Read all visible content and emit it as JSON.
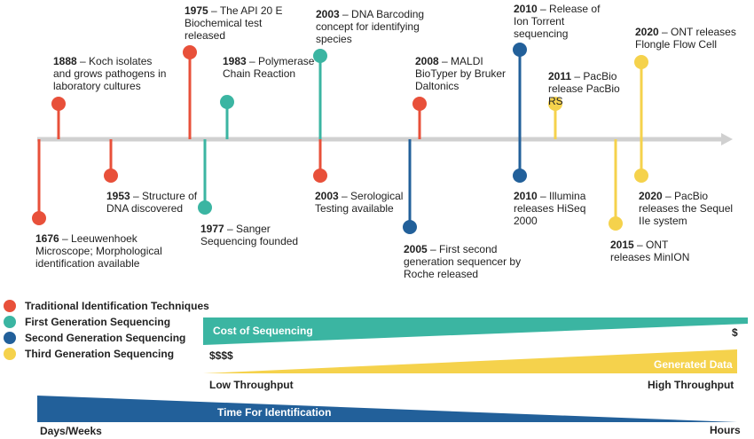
{
  "colors": {
    "traditional": "#e8503a",
    "first_gen": "#3bb5a2",
    "second_gen": "#22609a",
    "third_gen": "#f5d24c",
    "axis": "#d0d0d0"
  },
  "events": [
    {
      "year": "1676",
      "text": "– Leeuwenhoek Microscope;  Morphological identification available",
      "category": "traditional"
    },
    {
      "year": "1888",
      "text": "– Koch isolates and grows pathogens in laboratory cultures",
      "category": "traditional"
    },
    {
      "year": "1953",
      "text": "– Structure of DNA  discovered",
      "category": "traditional"
    },
    {
      "year": "1975",
      "text": "– The API 20 E Biochemical test released",
      "category": "traditional"
    },
    {
      "year": "1977",
      "text": "– Sanger Sequencing founded",
      "category": "first_gen"
    },
    {
      "year": "1983",
      "text": "– Polymerase Chain Reaction",
      "category": "first_gen"
    },
    {
      "year": "2003",
      "text": "– DNA Barcoding concept for identifying species",
      "category": "first_gen"
    },
    {
      "year": "2003",
      "text": "– Serological Testing available",
      "category": "traditional"
    },
    {
      "year": "2005",
      "text": "– First second generation sequencer by Roche released",
      "category": "second_gen"
    },
    {
      "year": "2008",
      "text": "– MALDI BioTyper by Bruker Daltonics",
      "category": "traditional"
    },
    {
      "year": "2010",
      "text": "– Release of Ion Torrent sequencing",
      "category": "second_gen"
    },
    {
      "year": "2010",
      "text": "– Illumina releases HiSeq 2000",
      "category": "second_gen"
    },
    {
      "year": "2011",
      "text": "– PacBio release PacBio RS",
      "category": "third_gen"
    },
    {
      "year": "2015",
      "text": "– ONT releases MinION",
      "category": "third_gen"
    },
    {
      "year": "2020",
      "text": "– ONT releases Flongle Flow Cell",
      "category": "third_gen"
    },
    {
      "year": "2020",
      "text": "– PacBio releases the Sequel IIe system",
      "category": "third_gen"
    }
  ],
  "legend": [
    {
      "label": "Traditional Identification Techniques",
      "category": "traditional"
    },
    {
      "label": "First Generation Sequencing",
      "category": "first_gen"
    },
    {
      "label": "Second Generation Sequencing",
      "category": "second_gen"
    },
    {
      "label": "Third Generation Sequencing",
      "category": "third_gen"
    }
  ],
  "bars": {
    "cost": {
      "title": "Cost of Sequencing",
      "high_label": "$$$$",
      "low_label": "$"
    },
    "data": {
      "title": "Generated Data",
      "low_label": "Low Throughput",
      "high_label": "High Throughput"
    },
    "time": {
      "title": "Time For Identification",
      "left_label": "Days/Weeks",
      "right_label": "Hours"
    }
  }
}
